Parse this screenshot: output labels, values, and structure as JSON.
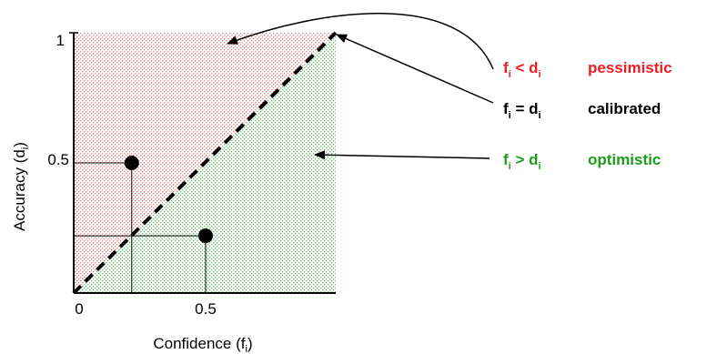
{
  "colors": {
    "pessimistic": "#ee1c24",
    "calibrated": "#000000",
    "optimistic": "#1a9e1a",
    "region_upper": "#f08080",
    "region_lower": "#66c266"
  },
  "axes": {
    "x_label_main": "Confidence (f",
    "x_label_sub": "i",
    "x_label_end": ")",
    "y_label_main": "Accuracy (d",
    "y_label_sub": "i",
    "y_label_end": ")",
    "x_ticks": [
      "0",
      "0.5"
    ],
    "y_ticks": [
      "1",
      "0.5"
    ]
  },
  "legend": [
    {
      "lhs": "f",
      "lhs_sub": "i",
      "op": " < ",
      "rhs": "d",
      "rhs_sub": "i",
      "label": "pessimistic"
    },
    {
      "lhs": "f",
      "lhs_sub": "i",
      "op": " = ",
      "rhs": "d",
      "rhs_sub": "i",
      "label": "calibrated"
    },
    {
      "lhs": "f",
      "lhs_sub": "i",
      "op": " > ",
      "rhs": "d",
      "rhs_sub": "i",
      "label": "optimistic"
    }
  ],
  "points": [
    {
      "x": 0.22,
      "y": 0.5
    },
    {
      "x": 0.5,
      "y": 0.22
    }
  ]
}
